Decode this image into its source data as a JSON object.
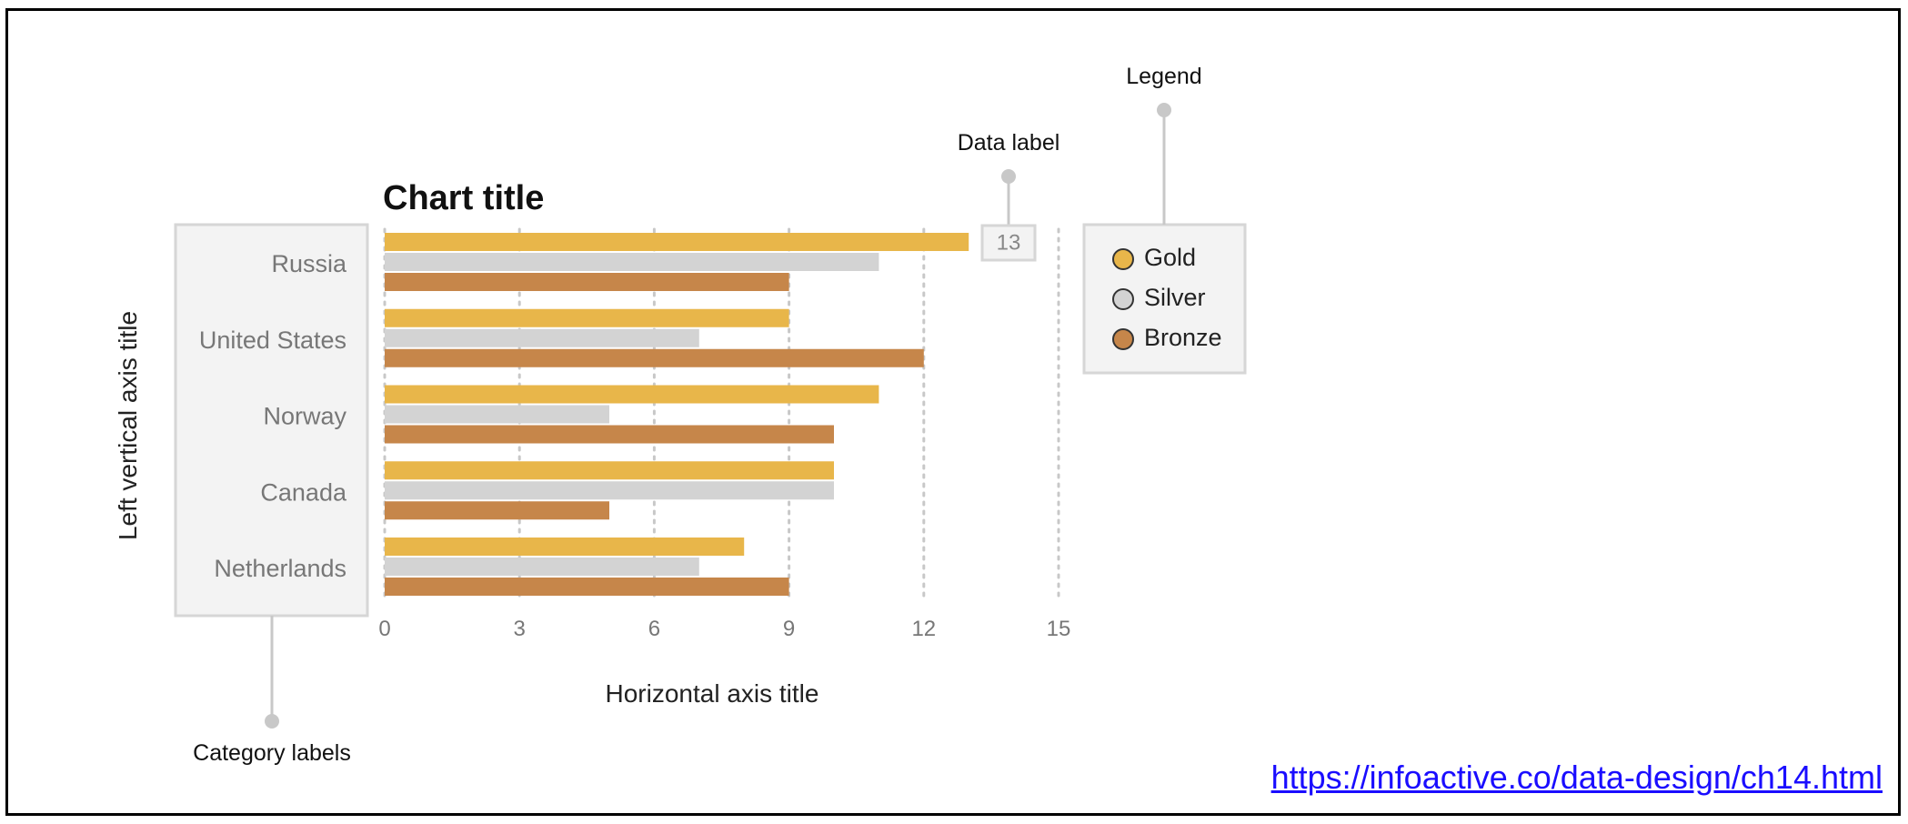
{
  "chart_data": {
    "type": "bar",
    "orientation": "horizontal",
    "title": "Chart title",
    "xlabel": "Horizontal axis title",
    "ylabel": "Left vertical axis title",
    "categories": [
      "Russia",
      "United States",
      "Norway",
      "Canada",
      "Netherlands"
    ],
    "series": [
      {
        "name": "Gold",
        "color": "#e8b64a",
        "values": [
          13,
          9,
          11,
          10,
          8
        ]
      },
      {
        "name": "Silver",
        "color": "#d3d3d3",
        "values": [
          11,
          7,
          5,
          10,
          7
        ]
      },
      {
        "name": "Bronze",
        "color": "#c6864a",
        "values": [
          9,
          12,
          10,
          5,
          9
        ]
      }
    ],
    "xlim": [
      0,
      15
    ],
    "xticks": [
      0,
      3,
      6,
      9,
      12,
      15
    ],
    "grid": true,
    "legend_position": "right",
    "data_label_example": "13"
  },
  "annotations": {
    "legend": "Legend",
    "data_label": "Data label",
    "category_labels": "Category labels"
  },
  "source_link": "https://infoactive.co/data-design/ch14.html"
}
